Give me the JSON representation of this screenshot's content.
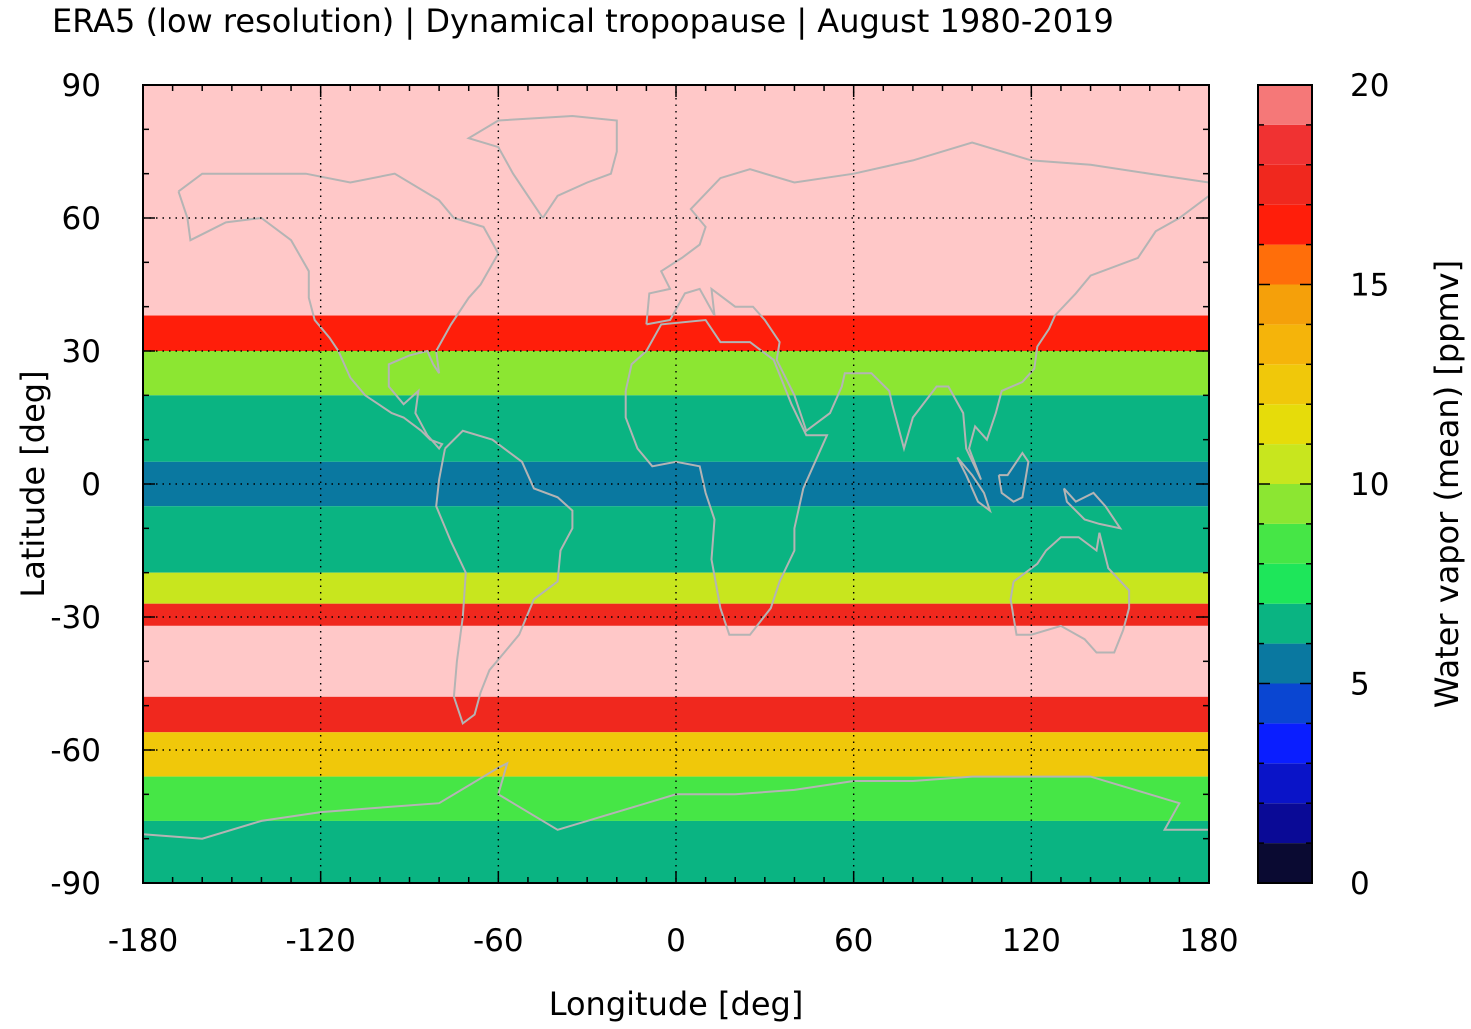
{
  "title": "ERA5 (low resolution) | Dynamical tropopause | August 1980-2019",
  "chart_data": {
    "type": "heatmap",
    "title": "ERA5 (low resolution) | Dynamical tropopause | August 1980-2019",
    "xlabel": "Longitude [deg]",
    "ylabel": "Latitude [deg]",
    "colorbar_label": "Water vapor (mean) [ppmv]",
    "xlim": [
      -180,
      180
    ],
    "ylim": [
      -90,
      90
    ],
    "xticks": [
      "-180",
      "-120",
      "-60",
      "0",
      "60",
      "120",
      "180"
    ],
    "yticks": [
      "90",
      "60",
      "30",
      "0",
      "-30",
      "-60",
      "-90"
    ],
    "colorbar_ticks": [
      "20",
      "15",
      "10",
      "5",
      "0"
    ],
    "colorbar_range": [
      0,
      20
    ],
    "grid": true,
    "coastlines_color": "#b4b4b4",
    "colorbar_levels": [
      {
        "from": 0,
        "to": 1,
        "color": "#0a0a32"
      },
      {
        "from": 1,
        "to": 2,
        "color": "#0a0a96"
      },
      {
        "from": 2,
        "to": 3,
        "color": "#0a14c8"
      },
      {
        "from": 3,
        "to": 4,
        "color": "#0a1eff"
      },
      {
        "from": 4,
        "to": 5,
        "color": "#0a46d2"
      },
      {
        "from": 5,
        "to": 6,
        "color": "#0a78a0"
      },
      {
        "from": 6,
        "to": 7,
        "color": "#0ab482"
      },
      {
        "from": 7,
        "to": 8,
        "color": "#1ee65a"
      },
      {
        "from": 8,
        "to": 9,
        "color": "#46e646"
      },
      {
        "from": 9,
        "to": 10,
        "color": "#8ce632"
      },
      {
        "from": 10,
        "to": 11,
        "color": "#c8e61e"
      },
      {
        "from": 11,
        "to": 12,
        "color": "#e6dc0a"
      },
      {
        "from": 12,
        "to": 13,
        "color": "#f0c80a"
      },
      {
        "from": 13,
        "to": 14,
        "color": "#f5b40a"
      },
      {
        "from": 14,
        "to": 15,
        "color": "#f5a00a"
      },
      {
        "from": 15,
        "to": 16,
        "color": "#ff6e0a"
      },
      {
        "from": 16,
        "to": 17,
        "color": "#ff1e0a"
      },
      {
        "from": 17,
        "to": 18,
        "color": "#f0281e"
      },
      {
        "from": 18,
        "to": 19,
        "color": "#f03232"
      },
      {
        "from": 19,
        "to": 20,
        "color": "#f57878"
      },
      {
        "from": 20,
        "to": 21,
        "color": "#ffc8c8"
      }
    ],
    "field_description_bands": [
      {
        "lat_from": 90,
        "lat_to": 38,
        "value": 20
      },
      {
        "lat_from": 38,
        "lat_to": 30,
        "value": 16.5
      },
      {
        "lat_from": 30,
        "lat_to": 20,
        "value": 9
      },
      {
        "lat_from": 20,
        "lat_to": 5,
        "value": 6.5
      },
      {
        "lat_from": 5,
        "lat_to": -5,
        "value": 5.5
      },
      {
        "lat_from": -5,
        "lat_to": -20,
        "value": 6.5
      },
      {
        "lat_from": -20,
        "lat_to": -27,
        "value": 10
      },
      {
        "lat_from": -27,
        "lat_to": -32,
        "value": 17
      },
      {
        "lat_from": -32,
        "lat_to": -48,
        "value": 20
      },
      {
        "lat_from": -48,
        "lat_to": -56,
        "value": 17
      },
      {
        "lat_from": -56,
        "lat_to": -66,
        "value": 12
      },
      {
        "lat_from": -66,
        "lat_to": -76,
        "value": 8
      },
      {
        "lat_from": -76,
        "lat_to": -90,
        "value": 6.5
      }
    ]
  }
}
